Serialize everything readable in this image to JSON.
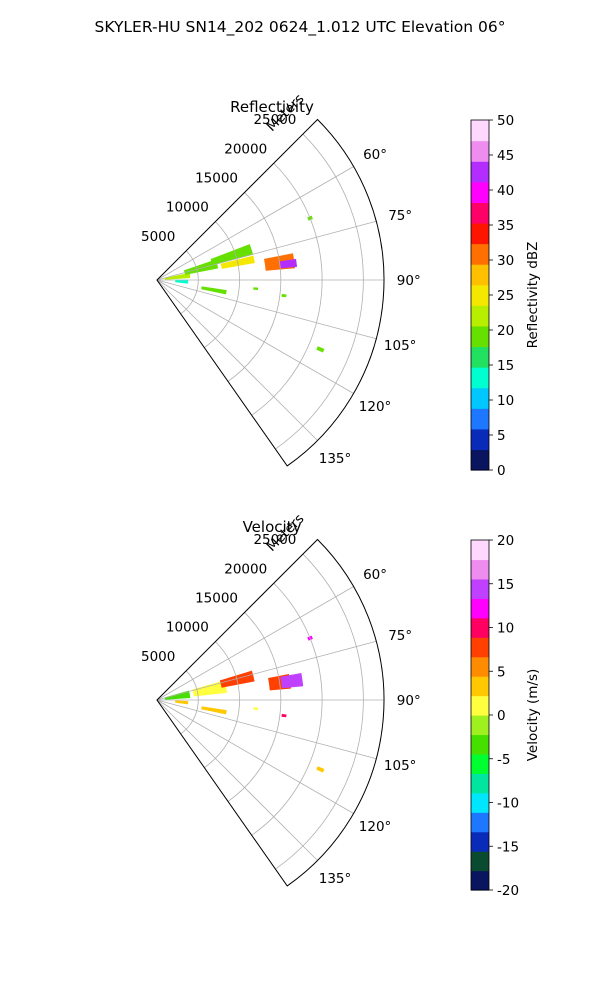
{
  "figure": {
    "title": "SKYLER-HU  SN14_202  0624_1.012 UTC Elevation 06°"
  },
  "chart_data": [
    {
      "type": "heatmap",
      "subtype": "polar-sector",
      "title": "Reflectivity",
      "radial_label": "Meters",
      "radial_ticks": [
        5000,
        10000,
        15000,
        20000,
        25000
      ],
      "radial_tick_labels": [
        "5000",
        "10000",
        "15000",
        "20000",
        "25000"
      ],
      "rlim": [
        0,
        27500
      ],
      "theta_ticks": [
        60,
        75,
        90,
        105,
        120,
        135
      ],
      "theta_tick_labels": [
        "60°",
        "75°",
        "90°",
        "105°",
        "120°",
        "135°"
      ],
      "theta_range": [
        45,
        145
      ],
      "grid": true,
      "colorbar": {
        "label": "Reflectivity dBZ",
        "min": 0,
        "max": 50,
        "ticks": [
          0,
          5,
          10,
          15,
          20,
          25,
          30,
          35,
          40,
          45,
          50
        ],
        "tick_labels": [
          "0",
          "5",
          "10",
          "15",
          "20",
          "25",
          "30",
          "35",
          "40",
          "45",
          "50"
        ],
        "stops": [
          "#0a1560",
          "#0a2ab8",
          "#1e78ff",
          "#00c8ff",
          "#00ffd0",
          "#22e060",
          "#66e000",
          "#b8ee00",
          "#f5e800",
          "#ffc000",
          "#ff7000",
          "#ff1400",
          "#ff0068",
          "#ff00ff",
          "#b42dff",
          "#ef8cef",
          "#ffd8ff"
        ]
      },
      "echoes": [
        {
          "range": 2500,
          "azimuth": 82,
          "dr": 3000,
          "da": 8,
          "value": 22
        },
        {
          "range": 5500,
          "azimuth": 75,
          "dr": 4000,
          "da": 8,
          "value": 20
        },
        {
          "range": 9500,
          "azimuth": 72,
          "dr": 5000,
          "da": 6,
          "value": 20
        },
        {
          "range": 10000,
          "azimuth": 78,
          "dr": 4000,
          "da": 4,
          "value": 26
        },
        {
          "range": 15000,
          "azimuth": 82,
          "dr": 3500,
          "da": 6,
          "value": 30
        },
        {
          "range": 16000,
          "azimuth": 83,
          "dr": 2000,
          "da": 3,
          "value": 42
        },
        {
          "range": 7000,
          "azimuth": 100,
          "dr": 3000,
          "da": 3,
          "value": 18
        },
        {
          "range": 3000,
          "azimuth": 93,
          "dr": 1500,
          "da": 6,
          "value": 12
        },
        {
          "range": 20000,
          "azimuth": 68,
          "dr": 500,
          "da": 1,
          "value": 20
        },
        {
          "range": 21500,
          "azimuth": 113,
          "dr": 800,
          "da": 1,
          "value": 18
        },
        {
          "range": 12000,
          "azimuth": 95,
          "dr": 500,
          "da": 1,
          "value": 20
        },
        {
          "range": 15500,
          "azimuth": 97,
          "dr": 500,
          "da": 1,
          "value": 18
        }
      ]
    },
    {
      "type": "heatmap",
      "subtype": "polar-sector",
      "title": "Velocity",
      "radial_label": "Meters",
      "radial_ticks": [
        5000,
        10000,
        15000,
        20000,
        25000
      ],
      "radial_tick_labels": [
        "5000",
        "10000",
        "15000",
        "20000",
        "25000"
      ],
      "rlim": [
        0,
        27500
      ],
      "theta_ticks": [
        60,
        75,
        90,
        105,
        120,
        135
      ],
      "theta_tick_labels": [
        "60°",
        "75°",
        "90°",
        "105°",
        "120°",
        "135°"
      ],
      "theta_range": [
        45,
        145
      ],
      "grid": true,
      "colorbar": {
        "label": "Velocity (m/s)",
        "min": -20,
        "max": 20,
        "ticks": [
          -20,
          -15,
          -10,
          -5,
          0,
          5,
          10,
          15,
          20
        ],
        "tick_labels": [
          "-20",
          "-15",
          "-10",
          "-5",
          "0",
          "5",
          "10",
          "15",
          "20"
        ],
        "stops": [
          "#0a1560",
          "#0a4a30",
          "#0a2ab8",
          "#1e78ff",
          "#00e6ff",
          "#00e6a0",
          "#00ff30",
          "#46e000",
          "#a0f020",
          "#ffff40",
          "#ffc800",
          "#ff8c00",
          "#ff4000",
          "#ff0060",
          "#ff00ff",
          "#c040ff",
          "#ef8cef",
          "#ffd8ff"
        ]
      },
      "echoes": [
        {
          "range": 2500,
          "azimuth": 80,
          "dr": 3000,
          "da": 12,
          "value": -4
        },
        {
          "range": 6500,
          "azimuth": 79,
          "dr": 4000,
          "da": 10,
          "value": 2
        },
        {
          "range": 10000,
          "azimuth": 76,
          "dr": 4000,
          "da": 6,
          "value": 8
        },
        {
          "range": 15000,
          "azimuth": 82,
          "dr": 2500,
          "da": 6,
          "value": 8
        },
        {
          "range": 16500,
          "azimuth": 82,
          "dr": 2500,
          "da": 5,
          "value": 14
        },
        {
          "range": 7000,
          "azimuth": 100,
          "dr": 3000,
          "da": 3,
          "value": 4
        },
        {
          "range": 3000,
          "azimuth": 95,
          "dr": 1500,
          "da": 5,
          "value": 3
        },
        {
          "range": 20000,
          "azimuth": 68,
          "dr": 500,
          "da": 1,
          "value": 12
        },
        {
          "range": 21500,
          "azimuth": 113,
          "dr": 800,
          "da": 1,
          "value": 3
        },
        {
          "range": 12000,
          "azimuth": 95,
          "dr": 500,
          "da": 1,
          "value": 0
        },
        {
          "range": 15500,
          "azimuth": 97,
          "dr": 500,
          "da": 1,
          "value": 10
        }
      ]
    }
  ]
}
